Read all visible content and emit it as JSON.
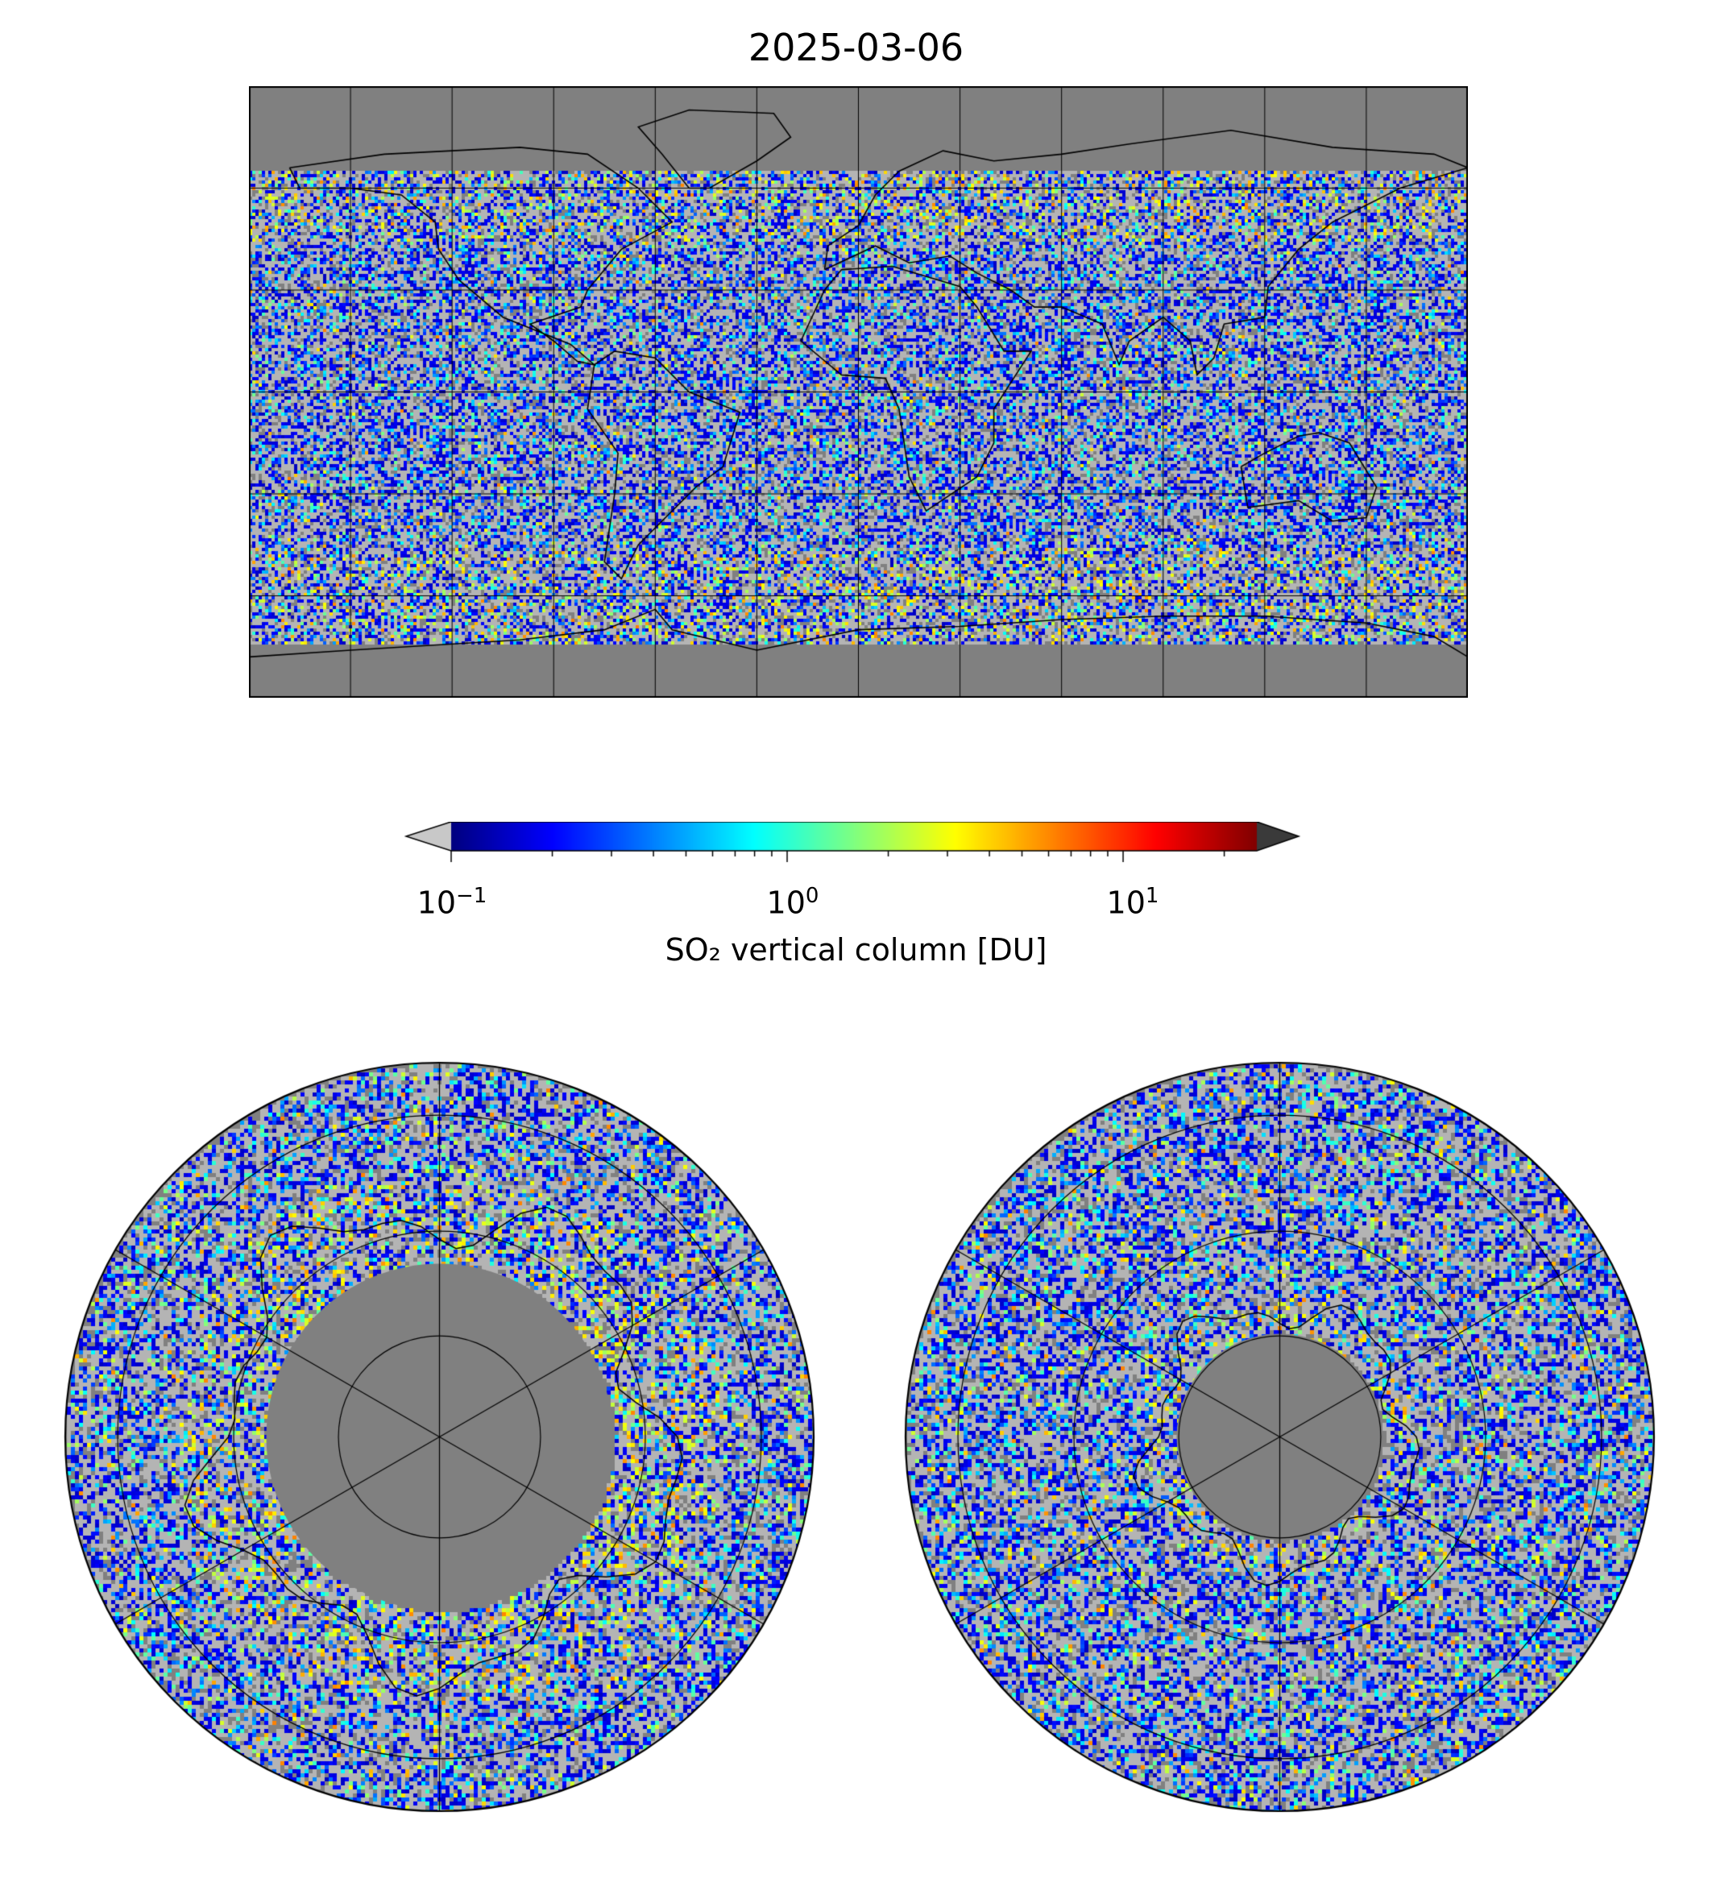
{
  "title": "2025-03-06",
  "colorbar": {
    "label": "SO₂ vertical column [DU]",
    "scale": "log",
    "range": [
      0.1,
      25
    ],
    "colormap": "jet",
    "extend": "both",
    "under_color": "#c8c8c8",
    "over_color": "#3a3a3a",
    "tick_labels": [
      {
        "base": "10",
        "exp": "−1",
        "value": 0.1
      },
      {
        "base": "10",
        "exp": "0",
        "value": 1
      },
      {
        "base": "10",
        "exp": "1",
        "value": 10
      }
    ]
  },
  "maps": {
    "global": {
      "projection": "plate-carree",
      "no_data_color": "#808080",
      "gridlines": true,
      "coastlines": true
    },
    "north_polar": {
      "projection": "north-polar-stereographic",
      "no_data_color": "#808080",
      "gridlines": true,
      "coastlines": true
    },
    "south_polar": {
      "projection": "south-polar-stereographic",
      "no_data_color": "#808080",
      "gridlines": true,
      "coastlines": true
    }
  },
  "colors": {
    "no_data": "#808080",
    "low_value": "#b4b4b4",
    "gridline": "#000000"
  }
}
